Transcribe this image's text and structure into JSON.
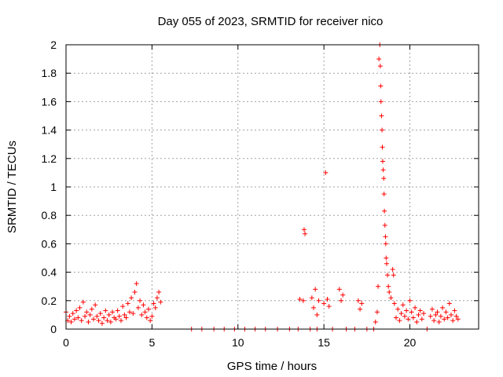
{
  "chart_data": {
    "type": "scatter",
    "title": "Day 055 of 2023, SRMTID for receiver nico",
    "xlabel": "GPS time / hours",
    "ylabel": "SRMTID / TECUs",
    "xlim": [
      0,
      24
    ],
    "ylim": [
      0,
      2
    ],
    "grid": true,
    "marker": "+",
    "color": "#ff0000",
    "x_ticks": [
      {
        "value": 0,
        "label": "0"
      },
      {
        "value": 5,
        "label": "5"
      },
      {
        "value": 10,
        "label": "10"
      },
      {
        "value": 15,
        "label": "15"
      },
      {
        "value": 20,
        "label": "20"
      }
    ],
    "y_ticks": [
      {
        "value": 0,
        "label": "0"
      },
      {
        "value": 0.2,
        "label": "0.2"
      },
      {
        "value": 0.4,
        "label": "0.4"
      },
      {
        "value": 0.6,
        "label": "0.6"
      },
      {
        "value": 0.8,
        "label": "0.8"
      },
      {
        "value": 1,
        "label": "1"
      },
      {
        "value": 1.2,
        "label": "1.2"
      },
      {
        "value": 1.4,
        "label": "1.4"
      },
      {
        "value": 1.6,
        "label": "1.6"
      },
      {
        "value": 1.8,
        "label": "1.8"
      },
      {
        "value": 2,
        "label": "2"
      }
    ],
    "series": [
      {
        "name": "SRMTID",
        "points": [
          [
            0.0,
            0.12
          ],
          [
            0.1,
            0.06
          ],
          [
            0.2,
            0.09
          ],
          [
            0.3,
            0.05
          ],
          [
            0.4,
            0.11
          ],
          [
            0.5,
            0.07
          ],
          [
            0.6,
            0.13
          ],
          [
            0.7,
            0.08
          ],
          [
            0.8,
            0.15
          ],
          [
            0.9,
            0.06
          ],
          [
            1.0,
            0.19
          ],
          [
            1.1,
            0.09
          ],
          [
            1.2,
            0.12
          ],
          [
            1.3,
            0.05
          ],
          [
            1.4,
            0.1
          ],
          [
            1.5,
            0.14
          ],
          [
            1.6,
            0.07
          ],
          [
            1.7,
            0.17
          ],
          [
            1.8,
            0.09
          ],
          [
            1.9,
            0.06
          ],
          [
            2.0,
            0.11
          ],
          [
            2.1,
            0.04
          ],
          [
            2.2,
            0.08
          ],
          [
            2.3,
            0.13
          ],
          [
            2.4,
            0.06
          ],
          [
            2.5,
            0.1
          ],
          [
            2.6,
            0.05
          ],
          [
            2.7,
            0.12
          ],
          [
            2.8,
            0.08
          ],
          [
            2.9,
            0.07
          ],
          [
            3.0,
            0.13
          ],
          [
            3.1,
            0.09
          ],
          [
            3.2,
            0.06
          ],
          [
            3.3,
            0.16
          ],
          [
            3.4,
            0.1
          ],
          [
            3.5,
            0.08
          ],
          [
            3.6,
            0.18
          ],
          [
            3.7,
            0.12
          ],
          [
            3.8,
            0.22
          ],
          [
            3.9,
            0.11
          ],
          [
            4.0,
            0.26
          ],
          [
            4.1,
            0.32
          ],
          [
            4.2,
            0.15
          ],
          [
            4.3,
            0.2
          ],
          [
            4.4,
            0.1
          ],
          [
            4.5,
            0.17
          ],
          [
            4.6,
            0.12
          ],
          [
            4.7,
            0.08
          ],
          [
            4.8,
            0.14
          ],
          [
            4.9,
            0.06
          ],
          [
            5.0,
            0.09
          ],
          [
            5.1,
            0.18
          ],
          [
            5.2,
            0.15
          ],
          [
            5.3,
            0.22
          ],
          [
            5.4,
            0.26
          ],
          [
            5.5,
            0.19
          ],
          [
            7.3,
            0.0
          ],
          [
            7.9,
            0.0
          ],
          [
            8.6,
            0.0
          ],
          [
            9.2,
            0.0
          ],
          [
            9.8,
            0.0
          ],
          [
            10.4,
            0.0
          ],
          [
            11.0,
            0.0
          ],
          [
            11.6,
            0.0
          ],
          [
            12.3,
            0.0
          ],
          [
            13.0,
            0.0
          ],
          [
            13.5,
            0.0
          ],
          [
            13.6,
            0.21
          ],
          [
            13.8,
            0.2
          ],
          [
            13.85,
            0.7
          ],
          [
            13.9,
            0.67
          ],
          [
            14.2,
            0.0
          ],
          [
            14.6,
            0.0
          ],
          [
            14.3,
            0.22
          ],
          [
            14.4,
            0.15
          ],
          [
            14.5,
            0.28
          ],
          [
            14.6,
            0.1
          ],
          [
            14.7,
            0.2
          ],
          [
            15.1,
            1.1
          ],
          [
            15.0,
            0.18
          ],
          [
            15.2,
            0.21
          ],
          [
            15.3,
            0.16
          ],
          [
            15.9,
            0.28
          ],
          [
            16.0,
            0.2
          ],
          [
            16.1,
            0.24
          ],
          [
            15.5,
            0.0
          ],
          [
            16.3,
            0.0
          ],
          [
            16.8,
            0.0
          ],
          [
            17.5,
            0.0
          ],
          [
            17.9,
            0.0
          ],
          [
            17.0,
            0.2
          ],
          [
            17.1,
            0.14
          ],
          [
            17.2,
            0.18
          ],
          [
            18.0,
            0.05
          ],
          [
            18.1,
            0.12
          ],
          [
            18.15,
            0.3
          ],
          [
            18.2,
            1.9
          ],
          [
            18.25,
            2.0
          ],
          [
            18.28,
            1.85
          ],
          [
            18.3,
            1.71
          ],
          [
            18.32,
            1.6
          ],
          [
            18.35,
            1.5
          ],
          [
            18.38,
            1.4
          ],
          [
            18.4,
            1.28
          ],
          [
            18.42,
            1.18
          ],
          [
            18.45,
            1.12
          ],
          [
            18.48,
            1.06
          ],
          [
            18.5,
            0.95
          ],
          [
            18.52,
            0.83
          ],
          [
            18.55,
            0.73
          ],
          [
            18.58,
            0.65
          ],
          [
            18.6,
            0.6
          ],
          [
            18.62,
            0.5
          ],
          [
            18.65,
            0.46
          ],
          [
            18.7,
            0.38
          ],
          [
            18.75,
            0.3
          ],
          [
            18.8,
            0.26
          ],
          [
            18.9,
            0.22
          ],
          [
            19.0,
            0.42
          ],
          [
            19.05,
            0.38
          ],
          [
            19.1,
            0.18
          ],
          [
            19.2,
            0.08
          ],
          [
            19.3,
            0.14
          ],
          [
            19.4,
            0.06
          ],
          [
            19.5,
            0.11
          ],
          [
            19.6,
            0.17
          ],
          [
            19.7,
            0.09
          ],
          [
            19.8,
            0.13
          ],
          [
            19.9,
            0.07
          ],
          [
            20.0,
            0.2
          ],
          [
            20.1,
            0.12
          ],
          [
            20.2,
            0.08
          ],
          [
            20.3,
            0.15
          ],
          [
            20.4,
            0.05
          ],
          [
            20.5,
            0.1
          ],
          [
            20.6,
            0.13
          ],
          [
            20.7,
            0.07
          ],
          [
            20.8,
            0.11
          ],
          [
            21.0,
            0.0
          ],
          [
            21.2,
            0.09
          ],
          [
            21.3,
            0.14
          ],
          [
            21.4,
            0.06
          ],
          [
            21.5,
            0.1
          ],
          [
            21.6,
            0.12
          ],
          [
            21.7,
            0.05
          ],
          [
            21.8,
            0.09
          ],
          [
            21.9,
            0.15
          ],
          [
            22.0,
            0.07
          ],
          [
            22.1,
            0.12
          ],
          [
            22.2,
            0.08
          ],
          [
            22.3,
            0.18
          ],
          [
            22.4,
            0.1
          ],
          [
            22.5,
            0.06
          ],
          [
            22.6,
            0.13
          ],
          [
            22.7,
            0.09
          ],
          [
            22.8,
            0.07
          ]
        ]
      }
    ]
  }
}
